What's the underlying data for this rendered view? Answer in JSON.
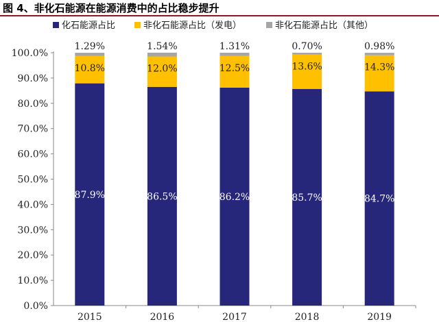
{
  "title": "图 4、非化石能源在能源消费中的占比稳步提升",
  "colors": {
    "fossil": "#26267a",
    "nonfossil_power": "#ffc000",
    "nonfossil_other": "#a6a6a6",
    "title_rule": "#8b1a1a"
  },
  "chart_data": {
    "type": "bar",
    "stacked": true,
    "categories": [
      "2015",
      "2016",
      "2017",
      "2018",
      "2019"
    ],
    "series": [
      {
        "name": "化石能源占比",
        "values": [
          87.9,
          86.5,
          86.2,
          85.7,
          84.7
        ],
        "labels": [
          "87.9%",
          "86.5%",
          "86.2%",
          "85.7%",
          "84.7%"
        ]
      },
      {
        "name": "非化石能源占比（发电）",
        "values": [
          10.8,
          12.0,
          12.5,
          13.6,
          14.3
        ],
        "labels": [
          "10.8%",
          "12.0%",
          "12.5%",
          "13.6%",
          "14.3%"
        ]
      },
      {
        "name": "非化石能源占比（其他）",
        "values": [
          1.29,
          1.54,
          1.31,
          0.7,
          0.98
        ],
        "labels": [
          "1.29%",
          "1.54%",
          "1.31%",
          "0.70%",
          "0.98%"
        ]
      }
    ],
    "ylim": [
      0,
      100
    ],
    "yticks": [
      "0.0%",
      "10.0%",
      "20.0%",
      "30.0%",
      "40.0%",
      "50.0%",
      "60.0%",
      "70.0%",
      "80.0%",
      "90.0%",
      "100.0%"
    ],
    "legend_position": "top",
    "grid": false
  }
}
